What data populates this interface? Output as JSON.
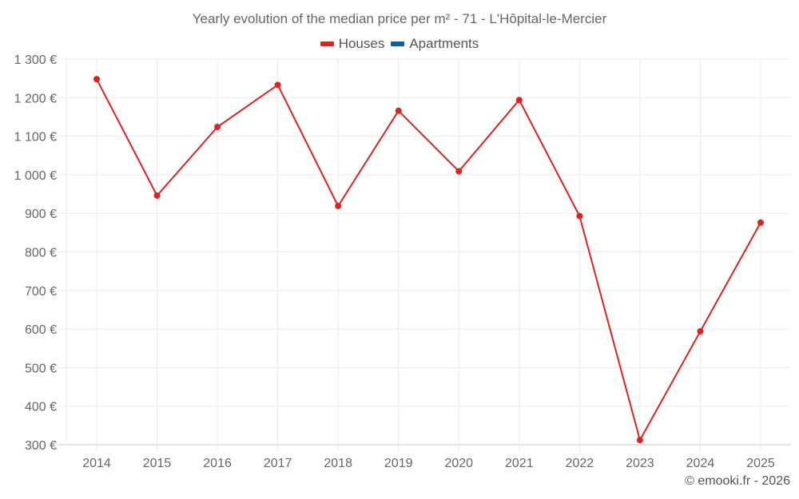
{
  "chart": {
    "title": "Yearly evolution of the median price per m² - 71 - L'Hôpital-le-Mercier",
    "legend": [
      {
        "label": "Houses",
        "color": "#dd2222"
      },
      {
        "label": "Apartments",
        "color": "#0b6099"
      }
    ],
    "credits": "© emooki.fr - 2026"
  },
  "chart_data": {
    "type": "line",
    "title": "Yearly evolution of the median price per m² - 71 - L'Hôpital-le-Mercier",
    "xlabel": "",
    "ylabel": "",
    "categories": [
      "2014",
      "2015",
      "2016",
      "2017",
      "2018",
      "2019",
      "2020",
      "2021",
      "2022",
      "2023",
      "2024",
      "2025"
    ],
    "series": [
      {
        "name": "Houses",
        "color": "#dd2222",
        "values": [
          1248,
          946,
          1124,
          1233,
          919,
          1166,
          1009,
          1194,
          893,
          312,
          594,
          876
        ]
      },
      {
        "name": "Apartments",
        "color": "#0b6099",
        "values": []
      }
    ],
    "yticks": [
      "300 €",
      "400 €",
      "500 €",
      "600 €",
      "700 €",
      "800 €",
      "900 €",
      "1 000 €",
      "1 100 €",
      "1 200 €",
      "1 300 €"
    ],
    "ylim": [
      300,
      1300
    ],
    "grid": true,
    "legend_position": "top"
  }
}
